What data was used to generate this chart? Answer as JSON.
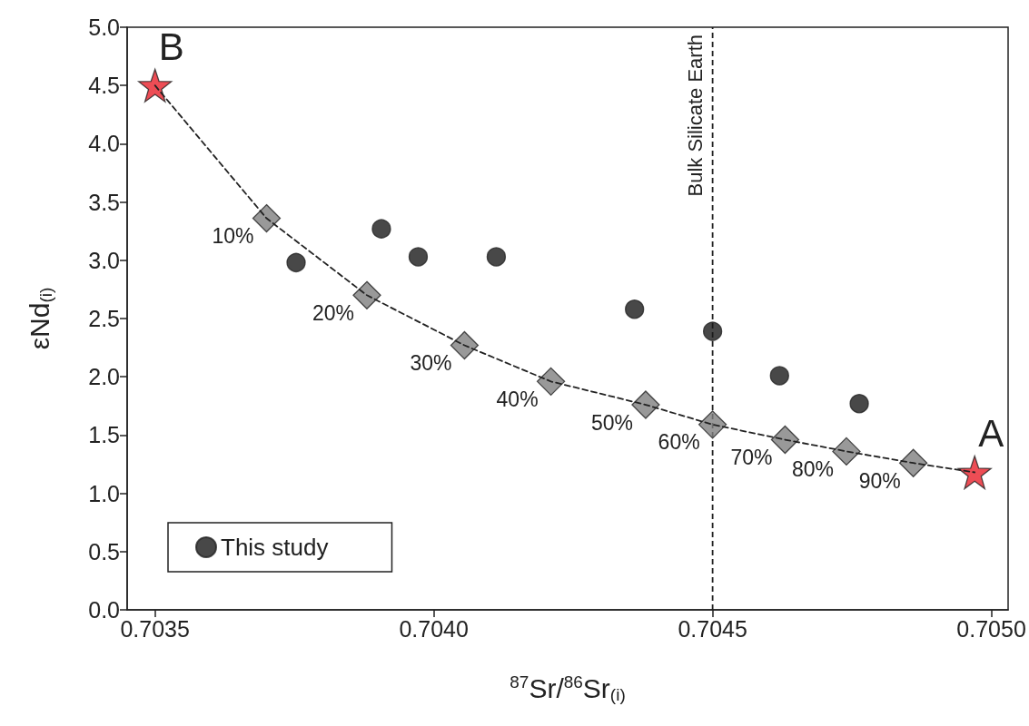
{
  "chart_data": {
    "type": "scatter",
    "xlabel": "$^{87}$Sr/$^{86}$Sr$_{(i)}$",
    "ylabel": "εNd$_{(i)}$",
    "xlim": [
      0.70345,
      0.70503
    ],
    "ylim": [
      0,
      5
    ],
    "xticks": [
      0.7035,
      {
        "value": 0.704,
        "label": "0.7040"
      },
      0.7045,
      {
        "value": 0.705,
        "label": "0.7050"
      }
    ],
    "yticks": [
      {
        "value": 0,
        "label": "0.0"
      },
      0.5,
      {
        "value": 1,
        "label": "1.0"
      },
      1.5,
      {
        "value": 2,
        "label": "2.0"
      },
      2.5,
      {
        "value": 3,
        "label": "3.0"
      },
      3.5,
      {
        "value": 4,
        "label": "4.0"
      },
      4.5,
      {
        "value": 5,
        "label": "5.0"
      }
    ],
    "grid": false,
    "legend": "bottom left",
    "series": [
      {
        "type": "line",
        "line_style": "dashed",
        "marker": "none",
        "color": "#222222",
        "x": [
          0.7035,
          0.7037,
          0.70388,
          0.704055,
          0.70421,
          0.70438,
          0.7045,
          0.70463,
          0.70474,
          0.70486,
          0.70497
        ],
        "values": [
          4.5,
          3.36,
          2.7,
          2.27,
          1.96,
          1.76,
          1.59,
          1.46,
          1.36,
          1.26,
          1.18
        ]
      },
      {
        "type": "scatter",
        "marker": "diamond",
        "color": "#808080",
        "x": [
          0.7037,
          0.70388,
          0.704055,
          0.70421,
          0.70438,
          0.7045,
          0.70463,
          0.70474,
          0.70486
        ],
        "values": [
          3.36,
          2.7,
          2.27,
          1.96,
          1.76,
          1.59,
          1.46,
          1.36,
          1.26
        ]
      },
      {
        "type": "scatter",
        "marker": "star",
        "color": "#e8202a",
        "x": [
          0.7035,
          0.70497
        ],
        "values": [
          4.5,
          1.18
        ]
      },
      {
        "type": "scatter",
        "marker": "circle",
        "name": "This study",
        "color": "#1a1a1a",
        "x": [
          0.703753,
          0.703906,
          0.703972,
          0.704112,
          0.70436,
          0.7045,
          0.70462,
          0.704763
        ],
        "values": [
          2.98,
          3.27,
          3.03,
          3.03,
          2.58,
          2.39,
          2.01,
          1.77
        ]
      }
    ],
    "ref_lines": [
      {
        "axis": "x",
        "value": 0.7045,
        "label": "Bulk Silicate Earth",
        "color": "#222222",
        "line_style": "dashed"
      }
    ],
    "annotations": [
      {
        "text": "B",
        "x": 0.7035,
        "y": 4.5
      },
      {
        "text": "A",
        "x": 0.70497,
        "y": 1.18
      },
      {
        "text": "10%",
        "x": 0.7037,
        "y": 3.36
      },
      {
        "text": "20%",
        "x": 0.70388,
        "y": 2.7
      },
      {
        "text": "30%",
        "x": 0.704055,
        "y": 2.27
      },
      {
        "text": "40%",
        "x": 0.70421,
        "y": 1.96
      },
      {
        "text": "50%",
        "x": 0.70438,
        "y": 1.76
      },
      {
        "text": "60%",
        "x": 0.7045,
        "y": 1.59
      },
      {
        "text": "70%",
        "x": 0.70463,
        "y": 1.46
      },
      {
        "text": "80%",
        "x": 0.70474,
        "y": 1.36
      },
      {
        "text": "90%",
        "x": 0.70486,
        "y": 1.26
      }
    ]
  }
}
